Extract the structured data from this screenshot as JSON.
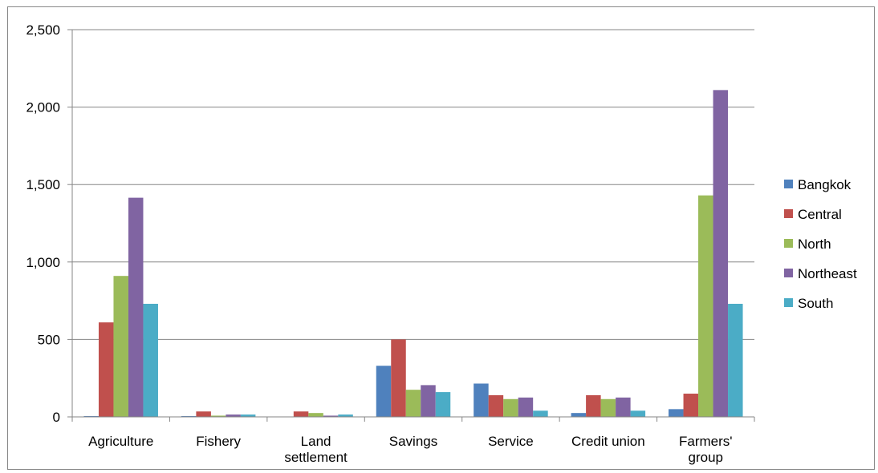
{
  "chart_data": {
    "type": "bar",
    "categories": [
      "Agriculture",
      "Fishery",
      "Land settlement",
      "Savings",
      "Service",
      "Credit union",
      "Farmers' group"
    ],
    "category_label_lines": [
      [
        "Agriculture"
      ],
      [
        "Fishery"
      ],
      [
        "Land",
        "settlement"
      ],
      [
        "Savings"
      ],
      [
        "Service"
      ],
      [
        "Credit union"
      ],
      [
        "Farmers'",
        "group"
      ]
    ],
    "series": [
      {
        "name": "Bangkok",
        "color": "#4F81BD",
        "values": [
          5,
          5,
          0,
          330,
          215,
          25,
          50
        ]
      },
      {
        "name": "Central",
        "color": "#C0504D",
        "values": [
          610,
          35,
          35,
          500,
          140,
          140,
          150
        ]
      },
      {
        "name": "North",
        "color": "#9BBB59",
        "values": [
          910,
          8,
          25,
          175,
          115,
          115,
          1430
        ]
      },
      {
        "name": "Northeast",
        "color": "#8064A2",
        "values": [
          1415,
          15,
          8,
          205,
          125,
          125,
          2110
        ]
      },
      {
        "name": "South",
        "color": "#4BACC6",
        "values": [
          730,
          15,
          15,
          160,
          40,
          40,
          730
        ]
      }
    ],
    "ylim": [
      0,
      2500
    ],
    "yticks": [
      0,
      500,
      1000,
      1500,
      2000,
      2500
    ],
    "ytick_labels": [
      "0",
      "500",
      "1,000",
      "1,500",
      "2,000",
      "2,500"
    ],
    "grid": true,
    "legend_position": "right",
    "title": "",
    "xlabel": "",
    "ylabel": ""
  }
}
